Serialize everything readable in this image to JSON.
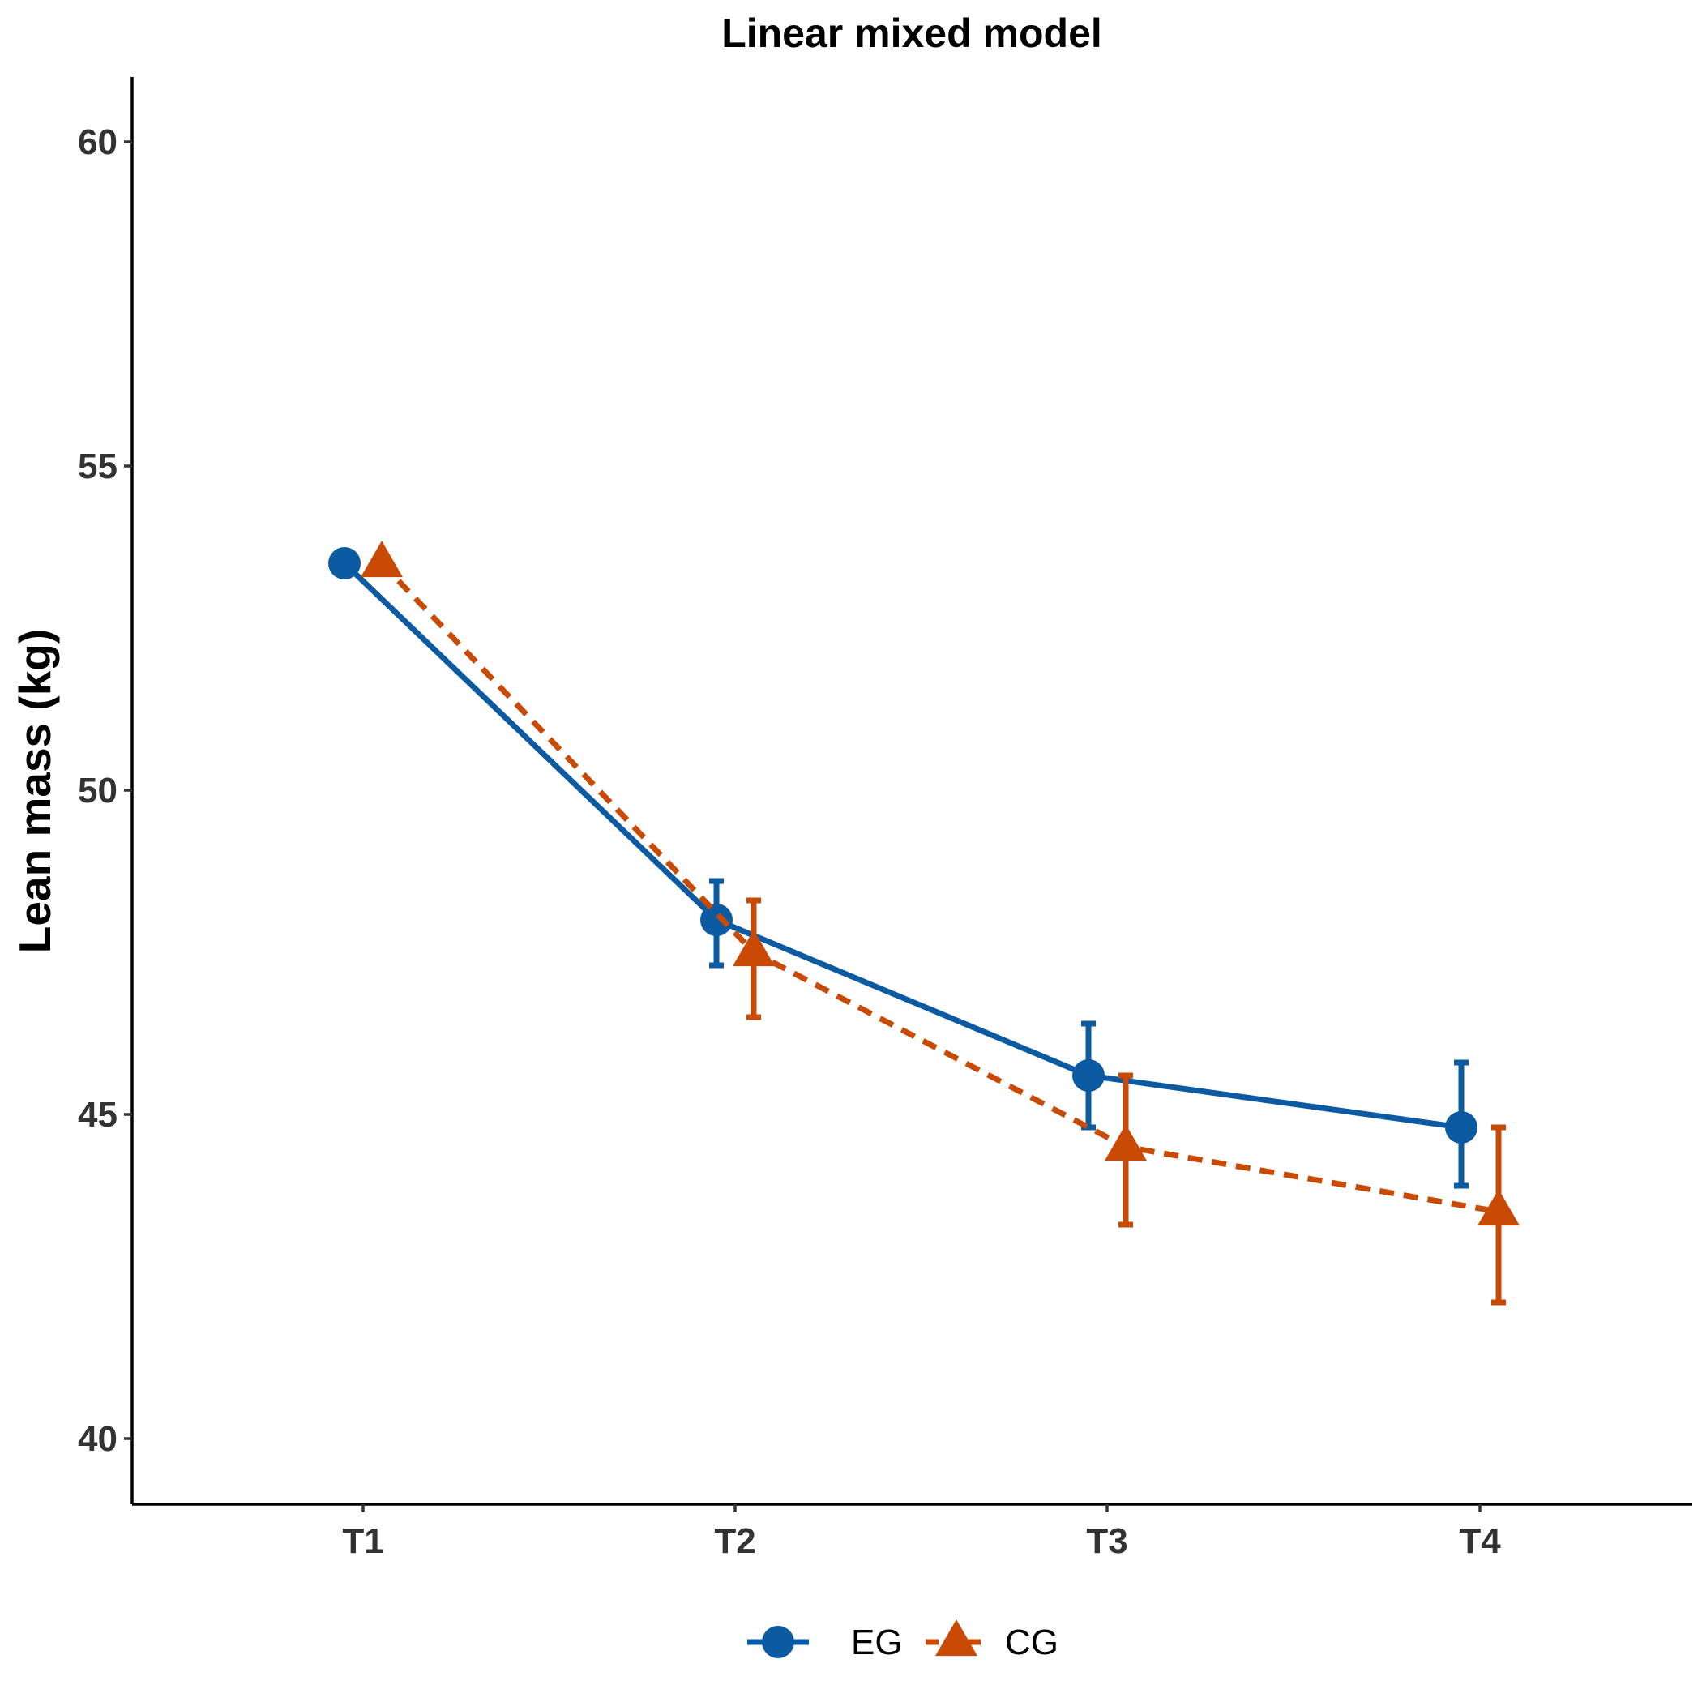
{
  "chart_data": {
    "type": "line",
    "title": "Linear mixed model",
    "xlabel": "",
    "ylabel": "Lean mass (kg)",
    "categories": [
      "T1",
      "T2",
      "T3",
      "T4"
    ],
    "yticks": [
      40,
      45,
      50,
      55,
      60
    ],
    "ylim": [
      39,
      61
    ],
    "grid": false,
    "legend_position": "bottom",
    "series": [
      {
        "name": "EG",
        "color": "#0B5AA2",
        "line_style": "solid",
        "marker": "circle",
        "values": [
          53.5,
          48.0,
          45.6,
          44.8
        ],
        "error_low": [
          null,
          47.3,
          44.8,
          43.9
        ],
        "error_high": [
          null,
          48.6,
          46.4,
          45.8
        ]
      },
      {
        "name": "CG",
        "color": "#C84A05",
        "line_style": "dashed",
        "marker": "triangle",
        "values": [
          53.5,
          47.5,
          44.5,
          43.5
        ],
        "error_low": [
          null,
          46.5,
          43.3,
          42.1
        ],
        "error_high": [
          null,
          48.3,
          45.6,
          44.8
        ]
      }
    ]
  }
}
